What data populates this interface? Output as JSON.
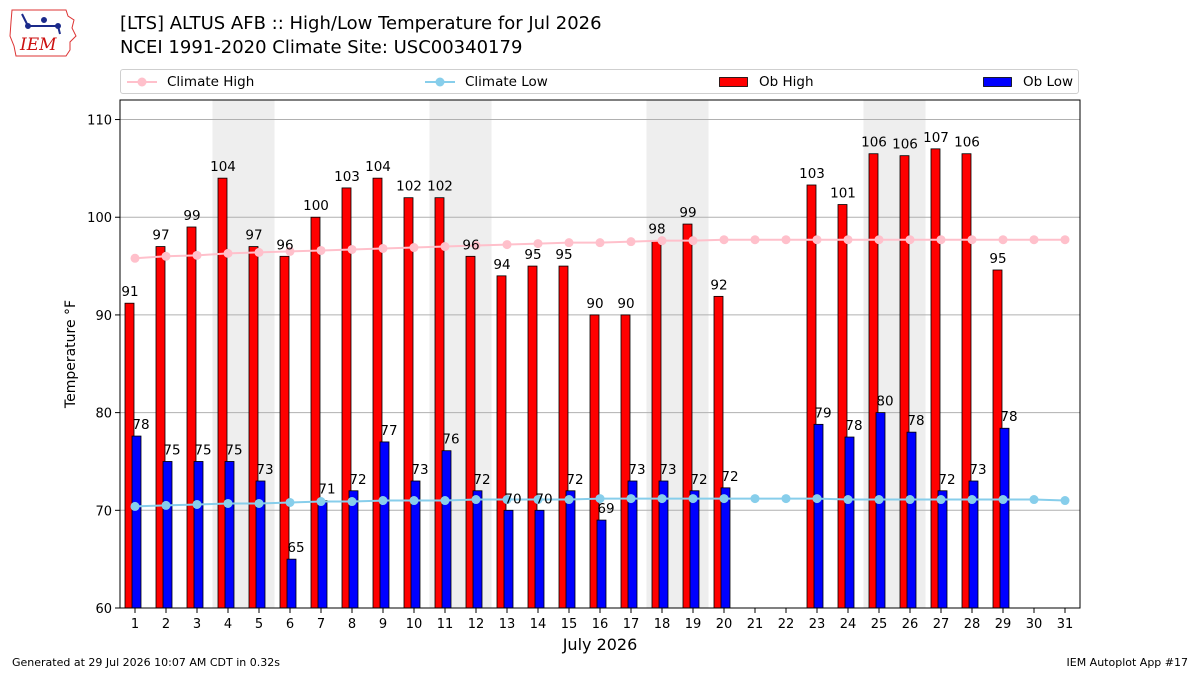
{
  "header": {
    "title_line1": "[LTS] ALTUS AFB :: High/Low Temperature for Jul 2026",
    "title_line2": "NCEI 1991-2020 Climate Site: USC00340179"
  },
  "logo": {
    "text": "IEM",
    "icon": "iem-iowa-state-logo"
  },
  "footer": {
    "generated": "Generated at 29 Jul 2026 10:07 AM CDT in 0.32s",
    "app": "IEM Autoplot App #17"
  },
  "legend": {
    "climate_high": "Climate High",
    "climate_low": "Climate Low",
    "ob_high": "Ob High",
    "ob_low": "Ob Low"
  },
  "colors": {
    "ob_high": "#ff0000",
    "ob_low": "#0000ff",
    "climate_high": "#ffc0cb",
    "climate_low": "#87ceeb",
    "weekend_shade": "#eeeeee"
  },
  "chart_data": {
    "type": "bar",
    "xlabel": "July 2026",
    "ylabel": "Temperature °F",
    "ylim": [
      60,
      112
    ],
    "yticks": [
      60,
      70,
      80,
      90,
      100,
      110
    ],
    "grid": "horizontal",
    "legend_position": "top",
    "categories": [
      "1",
      "2",
      "3",
      "4",
      "5",
      "6",
      "7",
      "8",
      "9",
      "10",
      "11",
      "12",
      "13",
      "14",
      "15",
      "16",
      "17",
      "18",
      "19",
      "20",
      "21",
      "22",
      "23",
      "24",
      "25",
      "26",
      "27",
      "28",
      "29",
      "30",
      "31"
    ],
    "shaded_days": [
      4,
      5,
      11,
      12,
      18,
      19,
      25,
      26
    ],
    "series": [
      {
        "name": "Ob High",
        "kind": "bar",
        "values": [
          91.2,
          97,
          99,
          104,
          97,
          96,
          100,
          103,
          104,
          102,
          102,
          96,
          94,
          95,
          95,
          90,
          90,
          97.6,
          99.3,
          91.9,
          null,
          null,
          103.3,
          101.3,
          106.5,
          106.3,
          107,
          106.5,
          94.6,
          null,
          null
        ],
        "labels": [
          "91",
          "97",
          "99",
          "104",
          "97",
          "96",
          "100",
          "103",
          "104",
          "102",
          "102",
          "96",
          "94",
          "95",
          "95",
          "90",
          "90",
          "98",
          "99",
          "92",
          null,
          null,
          "103",
          "101",
          "106",
          "106",
          "107",
          "106",
          "95",
          null,
          null
        ]
      },
      {
        "name": "Ob Low",
        "kind": "bar",
        "values": [
          77.6,
          75,
          75,
          75,
          73,
          65,
          71,
          72,
          77,
          73,
          76.1,
          72,
          70,
          70,
          72,
          69,
          73,
          73,
          72,
          72.3,
          null,
          null,
          78.8,
          77.5,
          80,
          78,
          72,
          73,
          78.4,
          null,
          null
        ],
        "labels": [
          "78",
          "75",
          "75",
          "75",
          "73",
          "65",
          "71",
          "72",
          "77",
          "73",
          "76",
          "72",
          "70",
          "70",
          "72",
          "69",
          "73",
          "73",
          "72",
          "72",
          null,
          null,
          "79",
          "78",
          "80",
          "78",
          "72",
          "73",
          "78",
          null,
          null
        ]
      },
      {
        "name": "Climate High",
        "kind": "line",
        "values": [
          95.8,
          96,
          96.1,
          96.3,
          96.4,
          96.5,
          96.6,
          96.7,
          96.8,
          96.9,
          97,
          97.1,
          97.2,
          97.3,
          97.4,
          97.4,
          97.5,
          97.6,
          97.6,
          97.7,
          97.7,
          97.7,
          97.7,
          97.7,
          97.7,
          97.7,
          97.7,
          97.7,
          97.7,
          97.7,
          97.7
        ]
      },
      {
        "name": "Climate Low",
        "kind": "line",
        "values": [
          70.4,
          70.5,
          70.6,
          70.7,
          70.7,
          70.8,
          70.9,
          70.9,
          71,
          71,
          71,
          71.1,
          71.1,
          71.1,
          71.1,
          71.2,
          71.2,
          71.2,
          71.2,
          71.2,
          71.2,
          71.2,
          71.2,
          71.1,
          71.1,
          71.1,
          71.1,
          71.1,
          71.1,
          71.1,
          71
        ]
      }
    ]
  }
}
